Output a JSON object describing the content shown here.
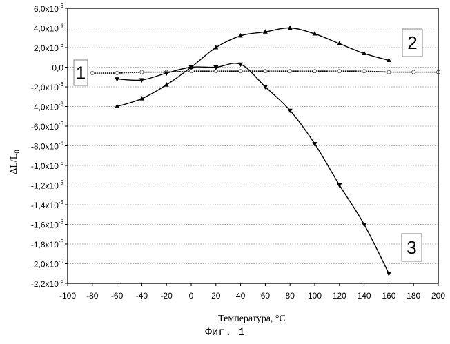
{
  "caption": "Фиг. 1",
  "colors": {
    "line": "#000000",
    "grid": "#9a9a9a",
    "curve1_marker_fill": "#ffffff"
  },
  "chart_data": {
    "type": "line",
    "title": "",
    "xlabel": "Температура, °C",
    "ylabel": "ΔL/L0",
    "xlim": [
      -100,
      200
    ],
    "ylim": [
      -2.2e-05,
      6e-06
    ],
    "x_ticks": [
      "-100",
      "-80",
      "-60",
      "-40",
      "-20",
      "0",
      "20",
      "40",
      "60",
      "80",
      "100",
      "120",
      "140",
      "160",
      "180",
      "200"
    ],
    "y_ticks": [
      {
        "value": 6e-06,
        "mant": "6,0x10",
        "exp": "-6"
      },
      {
        "value": 4e-06,
        "mant": "4,0x10",
        "exp": "-6"
      },
      {
        "value": 2e-06,
        "mant": "2,0x10",
        "exp": "-6"
      },
      {
        "value": 0,
        "mant": "0,0",
        "exp": ""
      },
      {
        "value": -2e-06,
        "mant": "-2,0x10",
        "exp": "-6"
      },
      {
        "value": -4e-06,
        "mant": "-4,0x10",
        "exp": "-6"
      },
      {
        "value": -6e-06,
        "mant": "-6,0x10",
        "exp": "-6"
      },
      {
        "value": -8e-06,
        "mant": "-8,0x10",
        "exp": "-6"
      },
      {
        "value": -1e-05,
        "mant": "-1,0x10",
        "exp": "-5"
      },
      {
        "value": -1.2e-05,
        "mant": "-1,2x10",
        "exp": "-5"
      },
      {
        "value": -1.4e-05,
        "mant": "-1,4x10",
        "exp": "-5"
      },
      {
        "value": -1.6e-05,
        "mant": "-1,6x10",
        "exp": "-5"
      },
      {
        "value": -1.8e-05,
        "mant": "-1,8x10",
        "exp": "-5"
      },
      {
        "value": -2e-05,
        "mant": "-2,0x10",
        "exp": "-5"
      },
      {
        "value": -2.2e-05,
        "mant": "-2,2x10",
        "exp": "-5"
      }
    ],
    "grid": "horizontal dotted",
    "series": [
      {
        "tag": "1",
        "marker": "circle-open",
        "x": [
          -80,
          -60,
          -40,
          -20,
          0,
          20,
          40,
          60,
          80,
          100,
          120,
          140,
          160,
          180,
          200
        ],
        "y": [
          -6e-07,
          -6e-07,
          -5e-07,
          -5e-07,
          -4e-07,
          -4e-07,
          -4e-07,
          -4e-07,
          -4e-07,
          -4e-07,
          -4e-07,
          -4e-07,
          -5e-07,
          -5e-07,
          -5e-07
        ]
      },
      {
        "tag": "2",
        "marker": "triangle-up",
        "x": [
          -60,
          -40,
          -20,
          0,
          20,
          40,
          60,
          80,
          100,
          120,
          140,
          160
        ],
        "y": [
          -4e-06,
          -3.2e-06,
          -1.8e-06,
          0.0,
          2e-06,
          3.2e-06,
          3.6e-06,
          4e-06,
          3.4e-06,
          2.4e-06,
          1.4e-06,
          7e-07
        ]
      },
      {
        "tag": "3",
        "marker": "triangle-down",
        "x": [
          -60,
          -40,
          -20,
          0,
          20,
          40,
          60,
          80,
          100,
          120,
          140,
          160
        ],
        "y": [
          -1.2e-06,
          -1.3e-06,
          -6e-07,
          0.0,
          0.0,
          3e-07,
          -2e-06,
          -4.4e-06,
          -7.8e-06,
          -1.2e-05,
          -1.6e-05,
          -2.1e-05
        ]
      }
    ]
  }
}
